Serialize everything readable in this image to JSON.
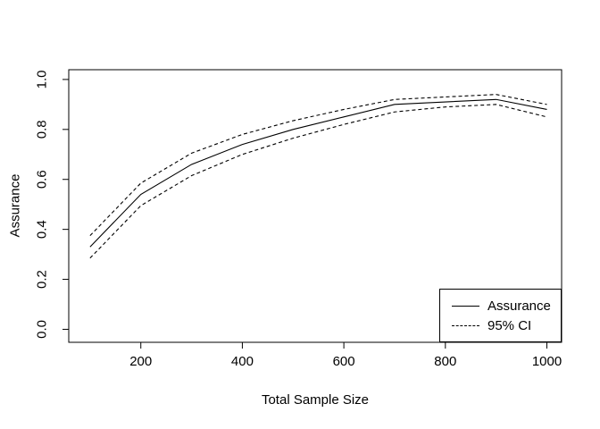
{
  "figure": {
    "background_color": "#ffffff",
    "line_color": "#000000",
    "text_color": "#000000"
  },
  "chart_data": {
    "type": "line",
    "title": "",
    "xlabel": "Total Sample Size",
    "ylabel": "Assurance",
    "x": [
      100,
      200,
      300,
      400,
      500,
      600,
      700,
      800,
      900,
      1000
    ],
    "series": [
      {
        "name": "Assurance",
        "style": "solid",
        "color": "#000000",
        "values": [
          0.33,
          0.54,
          0.66,
          0.74,
          0.8,
          0.85,
          0.9,
          0.91,
          0.92,
          0.88
        ]
      },
      {
        "name": "95% CI upper",
        "style": "dashed",
        "color": "#000000",
        "values": [
          0.375,
          0.585,
          0.705,
          0.78,
          0.835,
          0.88,
          0.92,
          0.93,
          0.94,
          0.9
        ]
      },
      {
        "name": "95% CI lower",
        "style": "dashed",
        "color": "#000000",
        "values": [
          0.285,
          0.495,
          0.615,
          0.7,
          0.765,
          0.82,
          0.87,
          0.89,
          0.9,
          0.85
        ]
      }
    ],
    "xticks": [
      "200",
      "400",
      "600",
      "800",
      "1000"
    ],
    "yticks": [
      "0.0",
      "0.2",
      "0.4",
      "0.6",
      "0.8",
      "1.0"
    ],
    "xlim": [
      58,
      1029
    ],
    "ylim": [
      -0.052,
      1.039
    ],
    "grid": false,
    "legend": {
      "position": "bottomright",
      "entries": [
        {
          "label": "Assurance",
          "line": "solid"
        },
        {
          "label": "95% CI",
          "line": "dashed"
        }
      ]
    }
  }
}
